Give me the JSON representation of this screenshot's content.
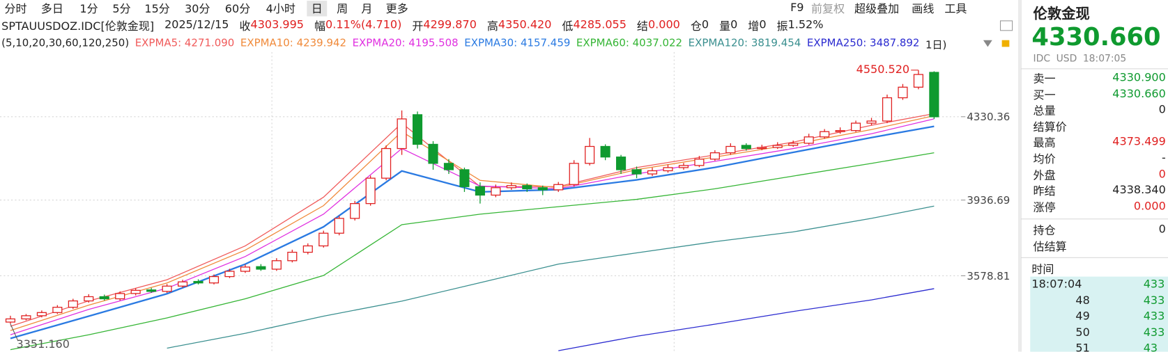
{
  "toolbar": {
    "periods": [
      "分时",
      "多日",
      "1分",
      "5分",
      "15分",
      "30分",
      "60分",
      "4小时",
      "日",
      "周",
      "月",
      "更多"
    ],
    "tools": [
      "F9",
      "前复权",
      "超级叠加",
      "画线",
      "工具"
    ]
  },
  "quote_bar": {
    "symbol": "SPTAUUSDOZ.IDC[伦敦金现]",
    "date": "2025/12/15",
    "fields": [
      {
        "label": "收",
        "value": "4303.995",
        "color": "#e02020"
      },
      {
        "label": "幅",
        "value": "0.11%(4.710)",
        "color": "#e02020"
      },
      {
        "label": "开",
        "value": "4299.870",
        "color": "#e02020"
      },
      {
        "label": "高",
        "value": "4350.420",
        "color": "#e02020"
      },
      {
        "label": "低",
        "value": "4285.055",
        "color": "#e02020"
      },
      {
        "label": "结",
        "value": "0.000",
        "color": "#e02020"
      },
      {
        "label": "仓",
        "value": "0",
        "color": "#222222"
      },
      {
        "label": "量",
        "value": "0",
        "color": "#222222"
      },
      {
        "label": "增",
        "value": "0",
        "color": "#222222"
      },
      {
        "label": "振",
        "value": "1.52%",
        "color": "#222222"
      }
    ]
  },
  "indicator": {
    "params": "(5,10,20,30,60,120,250)",
    "period": "1日)",
    "lines": [
      {
        "name": "EXPMA5: 4271.090",
        "color": "#f05a5a",
        "values": [
          3340,
          3460,
          3560,
          3720,
          3950,
          4300,
          4000,
          4000,
          4090,
          4150,
          4210,
          4290,
          4345
        ]
      },
      {
        "name": "EXPMA10: 4239.942",
        "color": "#f08a3a",
        "values": [
          3320,
          3440,
          3545,
          3700,
          3910,
          4260,
          4030,
          3995,
          4080,
          4140,
          4200,
          4270,
          4335
        ]
      },
      {
        "name": "EXPMA20: 4195.508",
        "color": "#e030e0",
        "values": [
          3300,
          3420,
          3520,
          3670,
          3870,
          4180,
          4003,
          3990,
          4060,
          4120,
          4180,
          4250,
          4320
        ]
      },
      {
        "name": "EXPMA30: 4157.459",
        "color": "#2a7ae2",
        "values": [
          3283,
          3388,
          3494,
          3634,
          3810,
          4074,
          3975,
          3986,
          4032,
          4091,
          4162,
          4232,
          4285
        ]
      },
      {
        "name": "EXPMA60: 4037.022",
        "color": "#35b535",
        "values": [
          3230,
          3300,
          3380,
          3470,
          3580,
          3820,
          3870,
          3905,
          3940,
          3990,
          4050,
          4110,
          4160
        ]
      },
      {
        "name": "EXPMA120: 3819.454",
        "color": "#3a8f8f",
        "values": [
          null,
          null,
          3237,
          3307,
          3388,
          3459,
          3546,
          3634,
          3687,
          3740,
          3786,
          3850,
          3908
        ]
      },
      {
        "name": "EXPMA250: 3487.892",
        "color": "#2b2bd0",
        "values": [
          null,
          null,
          null,
          null,
          null,
          null,
          null,
          3225,
          3293,
          3350,
          3410,
          3465,
          3518
        ]
      }
    ]
  },
  "chart": {
    "ylim": [
      3220,
      4636
    ],
    "yticks": [
      4330.36,
      3936.69,
      3578.81
    ],
    "grid": true,
    "up_color": "#e02020",
    "down_color": "#0f9a2f",
    "max_label": "4550.520",
    "min_label": "3351.160",
    "candles": [
      [
        3360,
        3390,
        3351.16,
        3375
      ],
      [
        3375,
        3398,
        3368,
        3390
      ],
      [
        3390,
        3415,
        3382,
        3405
      ],
      [
        3405,
        3440,
        3398,
        3430
      ],
      [
        3430,
        3470,
        3422,
        3460
      ],
      [
        3460,
        3492,
        3452,
        3480
      ],
      [
        3480,
        3490,
        3462,
        3470
      ],
      [
        3470,
        3505,
        3462,
        3495
      ],
      [
        3495,
        3520,
        3486,
        3510
      ],
      [
        3512,
        3522,
        3498,
        3505
      ],
      [
        3505,
        3540,
        3498,
        3530
      ],
      [
        3530,
        3560,
        3522,
        3550
      ],
      [
        3552,
        3562,
        3538,
        3545
      ],
      [
        3545,
        3585,
        3538,
        3575
      ],
      [
        3575,
        3612,
        3568,
        3600
      ],
      [
        3600,
        3632,
        3592,
        3620
      ],
      [
        3622,
        3634,
        3602,
        3610
      ],
      [
        3610,
        3662,
        3602,
        3650
      ],
      [
        3650,
        3702,
        3642,
        3690
      ],
      [
        3690,
        3732,
        3680,
        3720
      ],
      [
        3720,
        3792,
        3712,
        3780
      ],
      [
        3780,
        3862,
        3770,
        3850
      ],
      [
        3850,
        3932,
        3840,
        3920
      ],
      [
        3920,
        4052,
        3910,
        4040
      ],
      [
        4040,
        4195,
        4030,
        4180
      ],
      [
        4180,
        4360,
        4150,
        4320
      ],
      [
        4340,
        4355,
        4180,
        4200
      ],
      [
        4200,
        4215,
        4080,
        4110
      ],
      [
        4110,
        4130,
        4060,
        4080
      ],
      [
        4080,
        4090,
        3975,
        4000
      ],
      [
        4000,
        4020,
        3920,
        3960
      ],
      [
        3960,
        4010,
        3950,
        3995
      ],
      [
        3995,
        4020,
        3985,
        4005
      ],
      [
        4005,
        4015,
        3975,
        3990
      ],
      [
        3995,
        4005,
        3960,
        3985
      ],
      [
        3985,
        4022,
        3975,
        4010
      ],
      [
        4010,
        4125,
        4000,
        4110
      ],
      [
        4110,
        4230,
        4100,
        4190
      ],
      [
        4190,
        4200,
        4125,
        4140
      ],
      [
        4140,
        4150,
        4060,
        4080
      ],
      [
        4080,
        4095,
        4040,
        4060
      ],
      [
        4060,
        4090,
        4050,
        4075
      ],
      [
        4075,
        4105,
        4066,
        4090
      ],
      [
        4090,
        4112,
        4080,
        4100
      ],
      [
        4100,
        4145,
        4092,
        4130
      ],
      [
        4130,
        4172,
        4122,
        4160
      ],
      [
        4160,
        4205,
        4150,
        4190
      ],
      [
        4195,
        4205,
        4170,
        4180
      ],
      [
        4180,
        4198,
        4172,
        4185
      ],
      [
        4185,
        4210,
        4178,
        4195
      ],
      [
        4195,
        4218,
        4188,
        4205
      ],
      [
        4205,
        4250,
        4198,
        4235
      ],
      [
        4235,
        4272,
        4226,
        4260
      ],
      [
        4260,
        4280,
        4250,
        4265
      ],
      [
        4265,
        4312,
        4258,
        4300
      ],
      [
        4300,
        4325,
        4290,
        4310
      ],
      [
        4310,
        4435,
        4300,
        4420
      ],
      [
        4420,
        4485,
        4410,
        4470
      ],
      [
        4470,
        4550.52,
        4460,
        4530
      ],
      [
        4540,
        4545,
        4320,
        4330
      ]
    ]
  },
  "panel": {
    "title": "伦敦金现",
    "price": "4330.660",
    "price_color": "#0f9a2f",
    "source": "IDC",
    "currency": "USD",
    "time": "18:07:05",
    "rows": [
      {
        "label": "卖一",
        "value": "4330.900",
        "color": "#0f9a2f"
      },
      {
        "label": "买一",
        "value": "4330.660",
        "color": "#0f9a2f"
      },
      {
        "label": "总量",
        "value": "0",
        "color": "#222222"
      },
      {
        "label": "结算价"
      },
      {
        "label": "最高",
        "value": "4373.499",
        "color": "#e02020"
      },
      {
        "label": "均价",
        "value": "-",
        "color": "#222222"
      },
      {
        "label": "外盘",
        "value": "0",
        "color": "#e02020"
      },
      {
        "label": "昨结",
        "value": "4338.340",
        "color": "#222222"
      },
      {
        "label": "涨停",
        "value": "0.000",
        "color": "#e02020"
      }
    ],
    "rows2": [
      {
        "label": "持仓",
        "value": "0",
        "color": "#222222"
      },
      {
        "label": "估结算"
      }
    ],
    "ticks_header": "时间",
    "ticks": [
      {
        "time": "18:07:04",
        "price": "433"
      },
      {
        "time": "48",
        "price": "433"
      },
      {
        "time": "49",
        "price": "433"
      },
      {
        "time": "50",
        "price": "433"
      },
      {
        "time": "51",
        "price": "43"
      }
    ]
  }
}
